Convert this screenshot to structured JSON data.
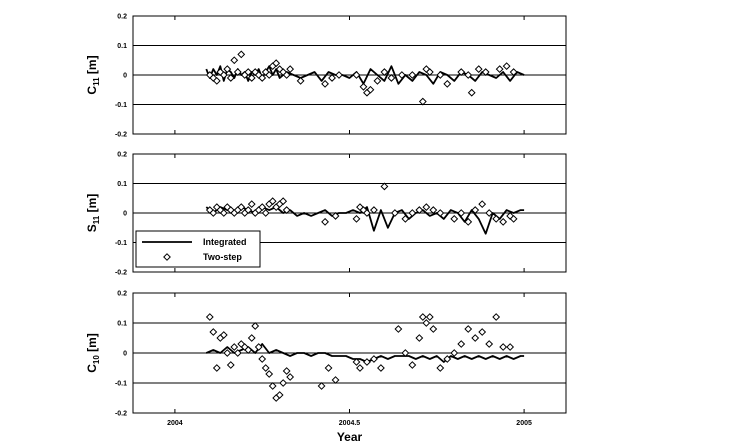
{
  "chart_data": [
    {
      "type": "line",
      "ylabel_main": "C",
      "ylabel_sub": "11",
      "ylabel_unit": " [m]",
      "ylim": [
        -0.2,
        0.2
      ],
      "yticks": [
        "0.2",
        "0.1",
        "0",
        "-0.1",
        "-0.2"
      ],
      "xlim": [
        2003.88,
        2005.12
      ],
      "gridlines_y": [
        0.1,
        0,
        -0.1
      ],
      "series": [
        {
          "name": "Integrated",
          "style": "line",
          "x": [
            2004.09,
            2004.1,
            2004.11,
            2004.12,
            2004.13,
            2004.14,
            2004.15,
            2004.16,
            2004.17,
            2004.18,
            2004.19,
            2004.2,
            2004.21,
            2004.22,
            2004.23,
            2004.24,
            2004.25,
            2004.26,
            2004.27,
            2004.28,
            2004.29,
            2004.3,
            2004.31,
            2004.32,
            2004.34,
            2004.36,
            2004.38,
            2004.4,
            2004.42,
            2004.44,
            2004.46,
            2004.48,
            2004.5,
            2004.52,
            2004.54,
            2004.56,
            2004.58,
            2004.6,
            2004.62,
            2004.64,
            2004.66,
            2004.68,
            2004.7,
            2004.72,
            2004.74,
            2004.76,
            2004.78,
            2004.8,
            2004.82,
            2004.84,
            2004.86,
            2004.88,
            2004.9,
            2004.92,
            2004.94,
            2004.96,
            2004.98,
            2005.0
          ],
          "y": [
            0.02,
            -0.01,
            0.02,
            0.0,
            0.03,
            -0.02,
            0.02,
            0.01,
            -0.01,
            0.02,
            0.0,
            0.01,
            -0.02,
            0.01,
            0.0,
            0.02,
            -0.01,
            0.01,
            0.03,
            0.0,
            0.02,
            -0.01,
            0.0,
            0.01,
            0.0,
            -0.01,
            0.0,
            0.01,
            -0.02,
            0.01,
            0.0,
            0.0,
            -0.01,
            0.01,
            -0.03,
            0.02,
            0.0,
            -0.02,
            0.03,
            -0.03,
            0.0,
            -0.02,
            0.01,
            0.0,
            -0.03,
            0.01,
            0.0,
            -0.02,
            0.01,
            0.0,
            -0.02,
            0.01,
            0.0,
            -0.01,
            0.01,
            -0.02,
            0.01,
            0.0
          ]
        },
        {
          "name": "Two-step",
          "style": "diamond",
          "x": [
            2004.1,
            2004.11,
            2004.12,
            2004.13,
            2004.14,
            2004.15,
            2004.16,
            2004.17,
            2004.18,
            2004.19,
            2004.2,
            2004.21,
            2004.22,
            2004.23,
            2004.24,
            2004.25,
            2004.26,
            2004.27,
            2004.28,
            2004.29,
            2004.3,
            2004.31,
            2004.32,
            2004.33,
            2004.36,
            2004.43,
            2004.45,
            2004.47,
            2004.52,
            2004.54,
            2004.55,
            2004.56,
            2004.58,
            2004.6,
            2004.62,
            2004.65,
            2004.68,
            2004.71,
            2004.72,
            2004.73,
            2004.76,
            2004.78,
            2004.82,
            2004.84,
            2004.85,
            2004.87,
            2004.89,
            2004.93,
            2004.95,
            2004.97
          ],
          "y": [
            0.0,
            -0.01,
            -0.02,
            0.01,
            0.0,
            0.02,
            -0.01,
            0.05,
            0.01,
            0.07,
            0.0,
            0.01,
            -0.01,
            0.01,
            0.0,
            -0.01,
            0.01,
            0.0,
            0.03,
            0.04,
            0.02,
            0.01,
            0.0,
            0.02,
            -0.02,
            -0.03,
            -0.01,
            0.0,
            0.0,
            -0.04,
            -0.06,
            -0.05,
            -0.02,
            0.01,
            -0.01,
            0.0,
            0.0,
            -0.09,
            0.02,
            0.01,
            0.0,
            -0.03,
            0.01,
            0.0,
            -0.06,
            0.02,
            0.01,
            0.02,
            0.03,
            0.01
          ]
        }
      ]
    },
    {
      "type": "line",
      "ylabel_main": "S",
      "ylabel_sub": "11",
      "ylabel_unit": " [m]",
      "ylim": [
        -0.2,
        0.2
      ],
      "yticks": [
        "0.2",
        "0.1",
        "0",
        "-0.1",
        "-0.2"
      ],
      "xlim": [
        2003.88,
        2005.12
      ],
      "gridlines_y": [
        0.1,
        0,
        -0.1
      ],
      "legend": {
        "entries": [
          "Integrated",
          "Two-step"
        ],
        "placement": "lower-left"
      },
      "series": [
        {
          "name": "Integrated",
          "style": "line",
          "x": [
            2004.09,
            2004.11,
            2004.13,
            2004.15,
            2004.17,
            2004.19,
            2004.21,
            2004.23,
            2004.25,
            2004.27,
            2004.29,
            2004.31,
            2004.33,
            2004.35,
            2004.37,
            2004.39,
            2004.41,
            2004.43,
            2004.45,
            2004.47,
            2004.49,
            2004.51,
            2004.53,
            2004.55,
            2004.57,
            2004.59,
            2004.61,
            2004.63,
            2004.65,
            2004.67,
            2004.69,
            2004.71,
            2004.73,
            2004.75,
            2004.77,
            2004.79,
            2004.81,
            2004.83,
            2004.85,
            2004.87,
            2004.89,
            2004.91,
            2004.93,
            2004.95,
            2004.97,
            2004.99,
            2005.0
          ],
          "y": [
            0.02,
            0.0,
            0.02,
            0.01,
            0.0,
            0.02,
            0.01,
            0.0,
            0.02,
            0.01,
            0.02,
            0.0,
            0.01,
            -0.01,
            0.0,
            -0.01,
            0.0,
            0.01,
            -0.01,
            0.0,
            0.0,
            0.01,
            0.0,
            0.02,
            -0.06,
            0.01,
            -0.05,
            0.0,
            0.01,
            -0.02,
            0.0,
            0.01,
            -0.01,
            0.0,
            -0.02,
            0.01,
            0.0,
            -0.03,
            0.01,
            -0.02,
            -0.07,
            0.0,
            -0.02,
            0.01,
            0.0,
            0.01,
            0.01
          ]
        },
        {
          "name": "Two-step",
          "style": "diamond",
          "x": [
            2004.1,
            2004.11,
            2004.12,
            2004.13,
            2004.14,
            2004.15,
            2004.16,
            2004.17,
            2004.18,
            2004.19,
            2004.2,
            2004.21,
            2004.22,
            2004.23,
            2004.24,
            2004.25,
            2004.26,
            2004.27,
            2004.28,
            2004.29,
            2004.3,
            2004.31,
            2004.32,
            2004.43,
            2004.46,
            2004.52,
            2004.53,
            2004.54,
            2004.55,
            2004.57,
            2004.6,
            2004.63,
            2004.66,
            2004.68,
            2004.7,
            2004.72,
            2004.74,
            2004.76,
            2004.8,
            2004.82,
            2004.84,
            2004.86,
            2004.88,
            2004.9,
            2004.92,
            2004.94,
            2004.96,
            2004.97
          ],
          "y": [
            0.01,
            0.0,
            0.02,
            0.01,
            0.0,
            0.02,
            0.01,
            0.0,
            0.01,
            0.02,
            0.0,
            0.01,
            0.03,
            0.0,
            0.01,
            0.02,
            0.0,
            0.03,
            0.04,
            0.02,
            0.03,
            0.04,
            0.01,
            -0.03,
            -0.01,
            -0.02,
            0.02,
            0.01,
            0.0,
            0.01,
            0.09,
            0.0,
            -0.02,
            0.0,
            0.01,
            0.02,
            0.01,
            0.0,
            -0.02,
            0.0,
            -0.03,
            0.01,
            0.03,
            0.0,
            -0.02,
            -0.03,
            -0.01,
            -0.02
          ]
        }
      ]
    },
    {
      "type": "line",
      "ylabel_main": "C",
      "ylabel_sub": "10",
      "ylabel_unit": " [m]",
      "ylim": [
        -0.2,
        0.2
      ],
      "yticks": [
        "0.2",
        "0.1",
        "0",
        "-0.1",
        "-0.2"
      ],
      "xlim": [
        2003.88,
        2005.12
      ],
      "gridlines_y": [
        0.1,
        0,
        -0.1
      ],
      "xlabel": "Year",
      "xticks": [
        2004,
        2004.5,
        2005
      ],
      "xticklabels": [
        "2004",
        "2004.5",
        "2005"
      ],
      "series": [
        {
          "name": "Integrated",
          "style": "line",
          "x": [
            2004.09,
            2004.11,
            2004.13,
            2004.15,
            2004.17,
            2004.19,
            2004.21,
            2004.23,
            2004.25,
            2004.27,
            2004.29,
            2004.31,
            2004.33,
            2004.35,
            2004.37,
            2004.39,
            2004.41,
            2004.43,
            2004.45,
            2004.47,
            2004.49,
            2004.51,
            2004.53,
            2004.55,
            2004.57,
            2004.59,
            2004.61,
            2004.63,
            2004.65,
            2004.67,
            2004.69,
            2004.71,
            2004.73,
            2004.75,
            2004.77,
            2004.79,
            2004.81,
            2004.83,
            2004.85,
            2004.87,
            2004.89,
            2004.91,
            2004.93,
            2004.95,
            2004.97,
            2004.99,
            2005.0
          ],
          "y": [
            0.0,
            0.01,
            0.0,
            0.02,
            0.0,
            0.01,
            0.02,
            0.0,
            0.03,
            0.0,
            0.01,
            0.0,
            -0.01,
            0.0,
            0.0,
            -0.01,
            0.0,
            0.0,
            -0.01,
            -0.01,
            -0.01,
            -0.02,
            -0.02,
            -0.03,
            -0.02,
            -0.01,
            -0.02,
            -0.01,
            -0.01,
            -0.01,
            -0.02,
            -0.01,
            -0.02,
            -0.01,
            -0.03,
            -0.01,
            -0.02,
            -0.01,
            -0.02,
            -0.01,
            -0.02,
            -0.01,
            -0.02,
            -0.01,
            -0.02,
            -0.01,
            -0.01
          ]
        },
        {
          "name": "Two-step",
          "style": "diamond",
          "x": [
            2004.1,
            2004.11,
            2004.12,
            2004.13,
            2004.14,
            2004.15,
            2004.16,
            2004.17,
            2004.18,
            2004.19,
            2004.2,
            2004.21,
            2004.22,
            2004.23,
            2004.24,
            2004.25,
            2004.26,
            2004.27,
            2004.28,
            2004.29,
            2004.3,
            2004.31,
            2004.32,
            2004.33,
            2004.42,
            2004.44,
            2004.46,
            2004.52,
            2004.53,
            2004.55,
            2004.57,
            2004.59,
            2004.64,
            2004.66,
            2004.68,
            2004.7,
            2004.71,
            2004.72,
            2004.73,
            2004.74,
            2004.76,
            2004.78,
            2004.8,
            2004.82,
            2004.84,
            2004.86,
            2004.88,
            2004.9,
            2004.92,
            2004.94,
            2004.96
          ],
          "y": [
            0.12,
            0.07,
            -0.05,
            0.05,
            0.06,
            0.0,
            -0.04,
            0.02,
            0.0,
            0.03,
            0.02,
            0.01,
            0.05,
            0.09,
            0.02,
            -0.02,
            -0.05,
            -0.07,
            -0.11,
            -0.15,
            -0.14,
            -0.1,
            -0.06,
            -0.08,
            -0.11,
            -0.05,
            -0.09,
            -0.03,
            -0.05,
            -0.03,
            -0.02,
            -0.05,
            0.08,
            0.0,
            -0.04,
            0.05,
            0.12,
            0.1,
            0.12,
            0.08,
            -0.05,
            -0.02,
            0.0,
            0.03,
            0.08,
            0.05,
            0.07,
            0.03,
            0.12,
            0.02,
            0.02
          ]
        }
      ]
    }
  ]
}
